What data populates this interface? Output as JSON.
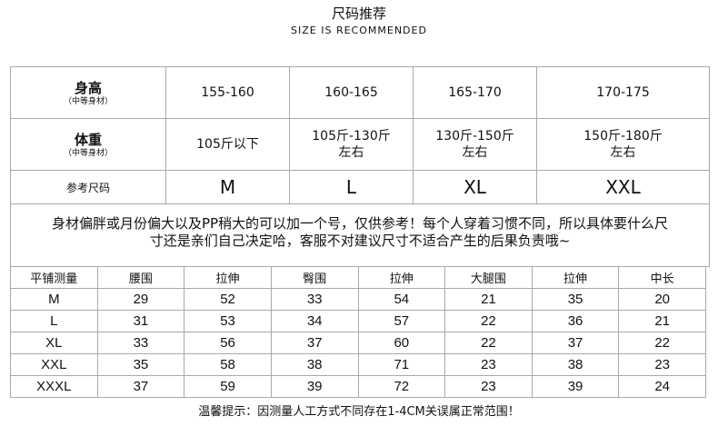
{
  "title": "尺码推荐",
  "subtitle": "SIZE IS RECOMMENDED",
  "reference": {
    "rows": [
      {
        "label": "身高",
        "sub": "（中等身材）",
        "values": [
          "155-160",
          "160-165",
          "165-170",
          "170-175"
        ]
      },
      {
        "label": "体重",
        "sub": "（中等身材）",
        "values": [
          "105斤以下",
          "105斤-130斤\n左右",
          "130斤-150斤\n左右",
          "150斤-180斤\n左右"
        ]
      },
      {
        "label": "参考尺码",
        "values": [
          "M",
          "L",
          "XL",
          "XXL"
        ]
      }
    ],
    "notice": "身材偏胖或月份偏大以及PP稍大的可以加一个号，仅供参考！每个人穿着习惯不同，所以具体要什么尺寸还是亲们自己决定哈，客服不对建议尺寸不适合产生的后果负责哦~"
  },
  "measure": {
    "headers": [
      "平铺测量",
      "腰围",
      "拉伸",
      "臀围",
      "拉伸",
      "大腿围",
      "拉伸",
      "中长"
    ],
    "rows": [
      [
        "M",
        "29",
        "52",
        "33",
        "54",
        "21",
        "35",
        "20"
      ],
      [
        "L",
        "31",
        "53",
        "34",
        "57",
        "22",
        "36",
        "21"
      ],
      [
        "XL",
        "33",
        "56",
        "37",
        "60",
        "22",
        "37",
        "22"
      ],
      [
        "XXL",
        "35",
        "58",
        "38",
        "71",
        "23",
        "38",
        "23"
      ],
      [
        "XXXL",
        "37",
        "59",
        "39",
        "72",
        "23",
        "39",
        "24"
      ]
    ]
  },
  "footer": "温馨提示：因测量人工方式不同存在1-4CM关误属正常范围！"
}
